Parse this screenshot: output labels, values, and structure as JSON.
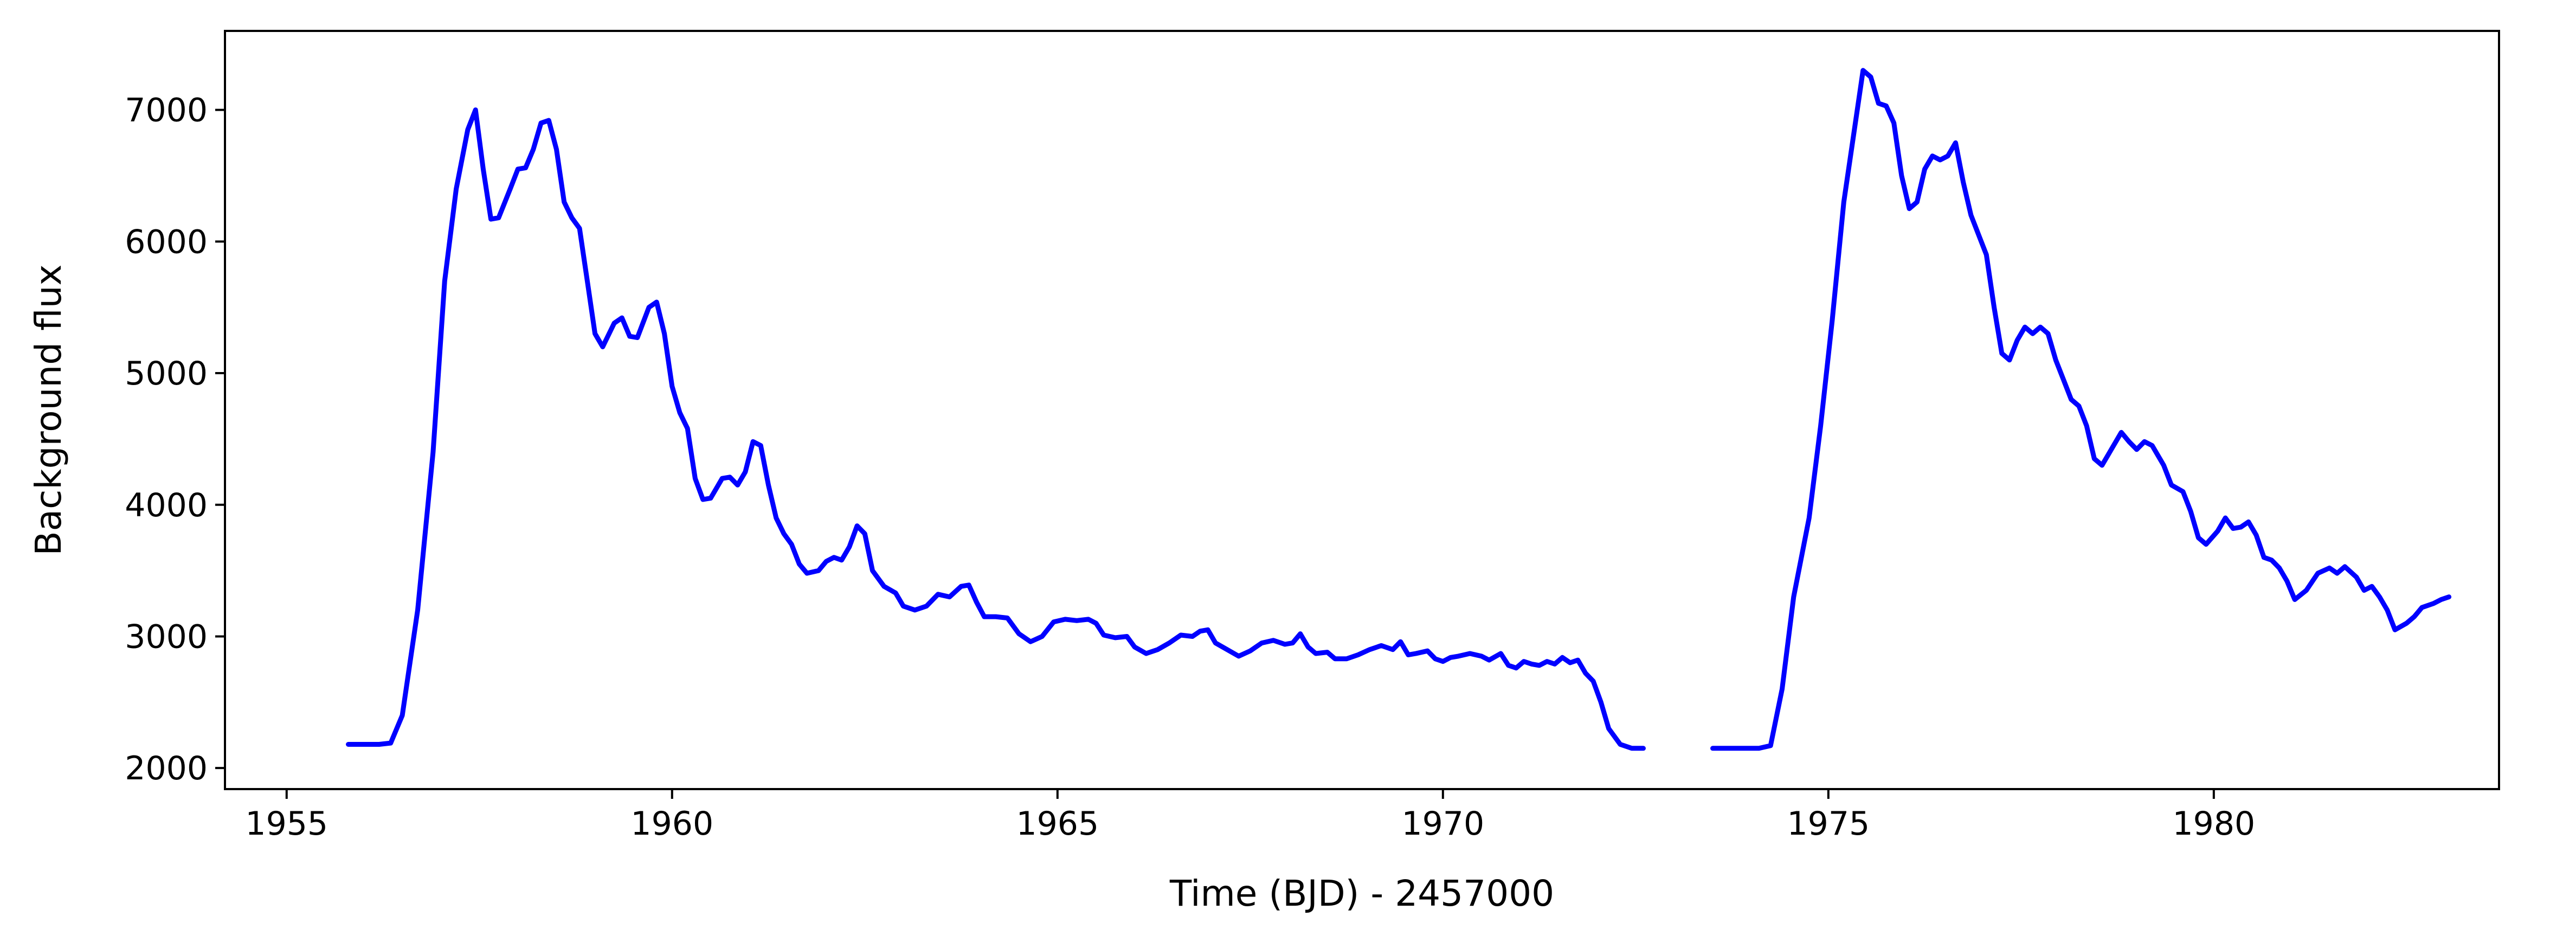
{
  "chart_data": {
    "type": "line",
    "title": "",
    "xlabel": "Time (BJD) - 2457000",
    "ylabel": "Background flux",
    "xlim": [
      1954.2,
      1983.7
    ],
    "ylim": [
      1840,
      7600
    ],
    "xticks": [
      1955,
      1960,
      1965,
      1970,
      1975,
      1980
    ],
    "yticks": [
      2000,
      3000,
      4000,
      5000,
      6000,
      7000
    ],
    "grid": false,
    "legend": "none",
    "color": "#0000ff",
    "series": [
      {
        "segments": [
          [
            [
              1955.8,
              2180
            ],
            [
              1956.0,
              2180
            ],
            [
              1956.2,
              2180
            ],
            [
              1956.35,
              2190
            ],
            [
              1956.5,
              2400
            ],
            [
              1956.7,
              3200
            ],
            [
              1956.9,
              4400
            ],
            [
              1957.05,
              5700
            ],
            [
              1957.2,
              6400
            ],
            [
              1957.35,
              6850
            ],
            [
              1957.45,
              7000
            ],
            [
              1957.55,
              6550
            ],
            [
              1957.65,
              6170
            ],
            [
              1957.75,
              6180
            ],
            [
              1957.9,
              6400
            ],
            [
              1958.0,
              6550
            ],
            [
              1958.1,
              6560
            ],
            [
              1958.2,
              6700
            ],
            [
              1958.3,
              6900
            ],
            [
              1958.4,
              6920
            ],
            [
              1958.5,
              6700
            ],
            [
              1958.6,
              6300
            ],
            [
              1958.7,
              6180
            ],
            [
              1958.8,
              6100
            ],
            [
              1958.9,
              5700
            ],
            [
              1959.0,
              5300
            ],
            [
              1959.1,
              5200
            ],
            [
              1959.25,
              5380
            ],
            [
              1959.35,
              5420
            ],
            [
              1959.45,
              5280
            ],
            [
              1959.55,
              5270
            ],
            [
              1959.7,
              5500
            ],
            [
              1959.8,
              5540
            ],
            [
              1959.9,
              5300
            ],
            [
              1960.0,
              4900
            ],
            [
              1960.1,
              4700
            ],
            [
              1960.2,
              4580
            ],
            [
              1960.3,
              4200
            ],
            [
              1960.4,
              4040
            ],
            [
              1960.5,
              4050
            ],
            [
              1960.65,
              4200
            ],
            [
              1960.75,
              4210
            ],
            [
              1960.85,
              4150
            ],
            [
              1960.95,
              4250
            ],
            [
              1961.05,
              4480
            ],
            [
              1961.15,
              4450
            ],
            [
              1961.25,
              4150
            ],
            [
              1961.35,
              3900
            ],
            [
              1961.45,
              3780
            ],
            [
              1961.55,
              3700
            ],
            [
              1961.65,
              3550
            ],
            [
              1961.75,
              3480
            ],
            [
              1961.9,
              3500
            ],
            [
              1962.0,
              3570
            ],
            [
              1962.1,
              3600
            ],
            [
              1962.2,
              3580
            ],
            [
              1962.3,
              3680
            ],
            [
              1962.4,
              3840
            ],
            [
              1962.5,
              3780
            ],
            [
              1962.6,
              3500
            ],
            [
              1962.75,
              3380
            ],
            [
              1962.9,
              3330
            ],
            [
              1963.0,
              3230
            ],
            [
              1963.15,
              3200
            ],
            [
              1963.3,
              3230
            ],
            [
              1963.45,
              3320
            ],
            [
              1963.6,
              3300
            ],
            [
              1963.75,
              3380
            ],
            [
              1963.85,
              3390
            ],
            [
              1963.95,
              3260
            ],
            [
              1964.05,
              3150
            ],
            [
              1964.2,
              3150
            ],
            [
              1964.35,
              3140
            ],
            [
              1964.5,
              3020
            ],
            [
              1964.65,
              2960
            ],
            [
              1964.8,
              3000
            ],
            [
              1964.95,
              3110
            ],
            [
              1965.1,
              3130
            ],
            [
              1965.25,
              3120
            ],
            [
              1965.4,
              3130
            ],
            [
              1965.5,
              3100
            ],
            [
              1965.6,
              3010
            ],
            [
              1965.75,
              2990
            ],
            [
              1965.9,
              3000
            ],
            [
              1966.0,
              2920
            ],
            [
              1966.15,
              2870
            ],
            [
              1966.3,
              2900
            ],
            [
              1966.45,
              2950
            ],
            [
              1966.6,
              3010
            ],
            [
              1966.75,
              3000
            ],
            [
              1966.85,
              3040
            ],
            [
              1966.95,
              3050
            ],
            [
              1967.05,
              2950
            ],
            [
              1967.2,
              2900
            ],
            [
              1967.35,
              2850
            ],
            [
              1967.5,
              2890
            ],
            [
              1967.65,
              2950
            ],
            [
              1967.8,
              2970
            ],
            [
              1967.95,
              2940
            ],
            [
              1968.05,
              2950
            ],
            [
              1968.15,
              3020
            ],
            [
              1968.25,
              2920
            ],
            [
              1968.35,
              2870
            ],
            [
              1968.5,
              2880
            ],
            [
              1968.6,
              2830
            ],
            [
              1968.75,
              2830
            ],
            [
              1968.9,
              2860
            ],
            [
              1969.05,
              2900
            ],
            [
              1969.2,
              2930
            ],
            [
              1969.35,
              2900
            ],
            [
              1969.45,
              2960
            ],
            [
              1969.55,
              2860
            ],
            [
              1969.65,
              2870
            ],
            [
              1969.8,
              2890
            ],
            [
              1969.9,
              2830
            ],
            [
              1970.0,
              2810
            ],
            [
              1970.1,
              2840
            ],
            [
              1970.2,
              2850
            ],
            [
              1970.35,
              2870
            ],
            [
              1970.5,
              2850
            ],
            [
              1970.6,
              2820
            ],
            [
              1970.75,
              2870
            ],
            [
              1970.85,
              2780
            ],
            [
              1970.95,
              2760
            ],
            [
              1971.05,
              2810
            ],
            [
              1971.15,
              2790
            ],
            [
              1971.25,
              2780
            ],
            [
              1971.35,
              2810
            ],
            [
              1971.45,
              2790
            ],
            [
              1971.55,
              2840
            ],
            [
              1971.65,
              2800
            ],
            [
              1971.75,
              2820
            ],
            [
              1971.85,
              2720
            ],
            [
              1971.95,
              2660
            ],
            [
              1972.05,
              2500
            ],
            [
              1972.15,
              2300
            ],
            [
              1972.3,
              2180
            ],
            [
              1972.45,
              2150
            ],
            [
              1972.6,
              2150
            ]
          ],
          [
            [
              1973.5,
              2150
            ],
            [
              1973.7,
              2150
            ],
            [
              1973.9,
              2150
            ],
            [
              1974.1,
              2150
            ],
            [
              1974.25,
              2170
            ],
            [
              1974.4,
              2600
            ],
            [
              1974.55,
              3300
            ],
            [
              1974.75,
              3900
            ],
            [
              1974.9,
              4600
            ],
            [
              1975.05,
              5400
            ],
            [
              1975.2,
              6300
            ],
            [
              1975.35,
              6900
            ],
            [
              1975.45,
              7300
            ],
            [
              1975.55,
              7250
            ],
            [
              1975.65,
              7050
            ],
            [
              1975.75,
              7030
            ],
            [
              1975.85,
              6900
            ],
            [
              1975.95,
              6500
            ],
            [
              1976.05,
              6250
            ],
            [
              1976.15,
              6300
            ],
            [
              1976.25,
              6550
            ],
            [
              1976.35,
              6650
            ],
            [
              1976.45,
              6620
            ],
            [
              1976.55,
              6650
            ],
            [
              1976.65,
              6750
            ],
            [
              1976.75,
              6450
            ],
            [
              1976.85,
              6200
            ],
            [
              1976.95,
              6050
            ],
            [
              1977.05,
              5900
            ],
            [
              1977.15,
              5500
            ],
            [
              1977.25,
              5150
            ],
            [
              1977.35,
              5100
            ],
            [
              1977.45,
              5250
            ],
            [
              1977.55,
              5350
            ],
            [
              1977.65,
              5300
            ],
            [
              1977.75,
              5350
            ],
            [
              1977.85,
              5300
            ],
            [
              1977.95,
              5100
            ],
            [
              1978.05,
              4950
            ],
            [
              1978.15,
              4800
            ],
            [
              1978.25,
              4750
            ],
            [
              1978.35,
              4600
            ],
            [
              1978.45,
              4350
            ],
            [
              1978.55,
              4300
            ],
            [
              1978.7,
              4450
            ],
            [
              1978.8,
              4550
            ],
            [
              1978.9,
              4480
            ],
            [
              1979.0,
              4420
            ],
            [
              1979.1,
              4480
            ],
            [
              1979.2,
              4450
            ],
            [
              1979.35,
              4300
            ],
            [
              1979.45,
              4150
            ],
            [
              1979.6,
              4100
            ],
            [
              1979.7,
              3950
            ],
            [
              1979.8,
              3750
            ],
            [
              1979.9,
              3700
            ],
            [
              1980.05,
              3800
            ],
            [
              1980.15,
              3900
            ],
            [
              1980.25,
              3820
            ],
            [
              1980.35,
              3830
            ],
            [
              1980.45,
              3870
            ],
            [
              1980.55,
              3770
            ],
            [
              1980.65,
              3600
            ],
            [
              1980.75,
              3580
            ],
            [
              1980.85,
              3520
            ],
            [
              1980.95,
              3420
            ],
            [
              1981.05,
              3280
            ],
            [
              1981.2,
              3350
            ],
            [
              1981.35,
              3480
            ],
            [
              1981.5,
              3520
            ],
            [
              1981.6,
              3480
            ],
            [
              1981.7,
              3530
            ],
            [
              1981.85,
              3450
            ],
            [
              1981.95,
              3350
            ],
            [
              1982.05,
              3380
            ],
            [
              1982.15,
              3300
            ],
            [
              1982.25,
              3200
            ],
            [
              1982.35,
              3050
            ],
            [
              1982.5,
              3100
            ],
            [
              1982.6,
              3150
            ],
            [
              1982.7,
              3220
            ],
            [
              1982.85,
              3250
            ],
            [
              1982.95,
              3280
            ],
            [
              1983.05,
              3300
            ]
          ]
        ]
      }
    ]
  }
}
